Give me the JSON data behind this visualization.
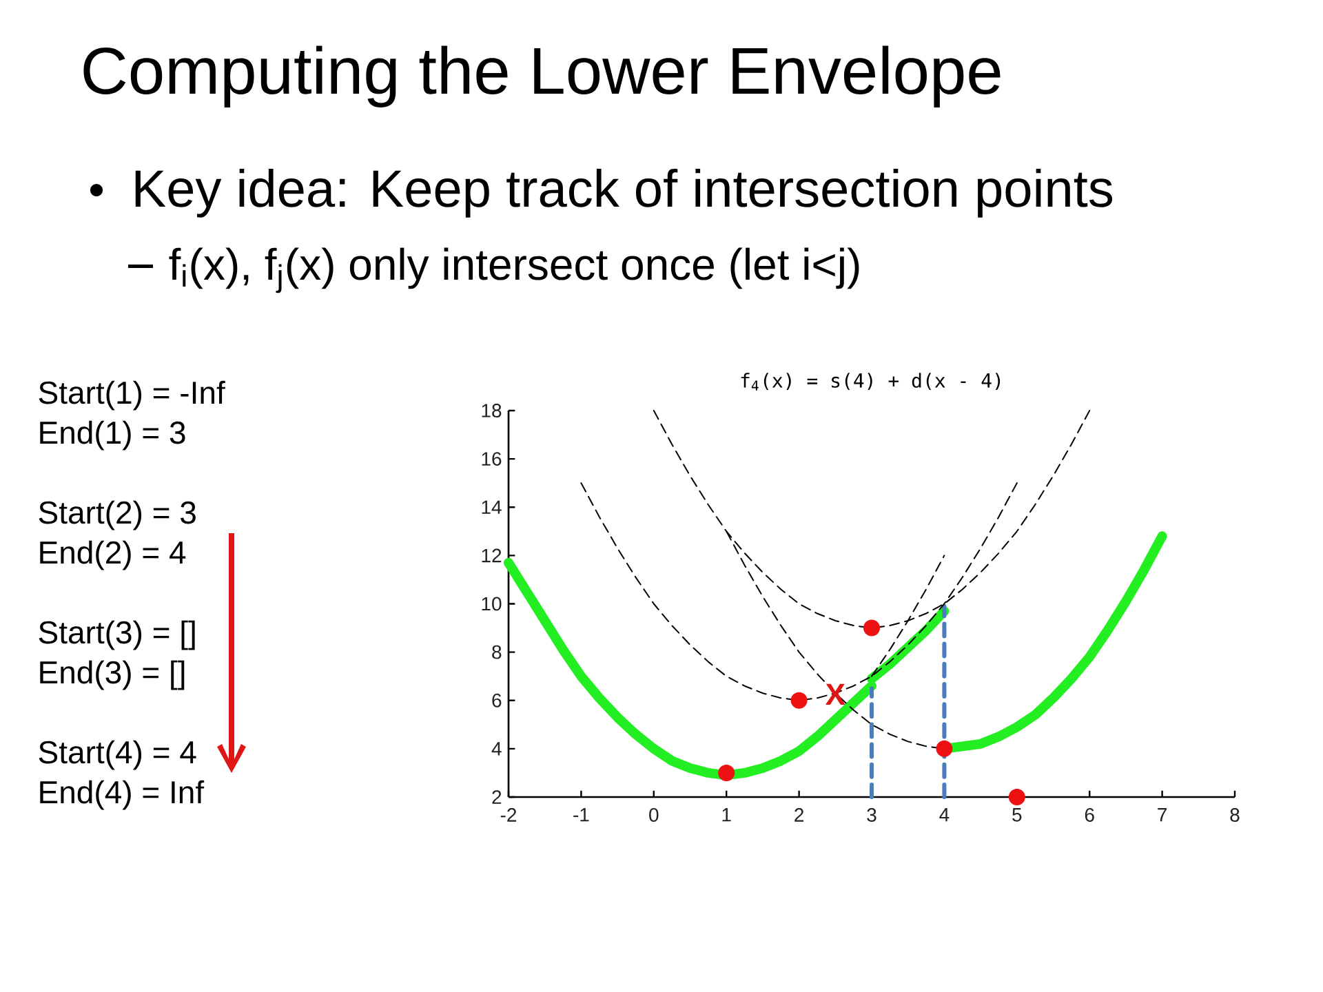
{
  "chart_data": {
    "type": "line",
    "title": "Computing the Lower Envelope",
    "subtitle": "f$_{4}$(x) = s(4) + d(x - 4)",
    "annotations": [
      "Key idea: Keep track of intersection points",
      "f$_{i}$(x), f$_{j}$(x) only intersect once (let i<j)",
      "Start(1) = -Inf",
      "End(1) = 3",
      "Start(2) = 3",
      "End(2) = 4",
      "Start(3) = []",
      "End(3) = []",
      "Start(4) = 4",
      "End(4) = Inf",
      {
        "text": "X",
        "x": 2.5,
        "y": 6.25
      }
    ],
    "xlim": [
      -2,
      8
    ],
    "xticks": [
      -2,
      -1,
      0,
      1,
      2,
      3,
      4,
      5,
      6,
      7,
      8
    ],
    "ylim": [
      2,
      18
    ],
    "yticks": [
      2,
      4,
      6,
      8,
      10,
      12,
      14,
      16,
      18
    ],
    "series": [
      {
        "color": "#000000",
        "line_style": "dashed",
        "marker": "none",
        "x": [
          -1,
          -0.75,
          -0.5,
          -0.25,
          0,
          0.25,
          0.5,
          0.75,
          1,
          1.25,
          1.5,
          1.75,
          2,
          2.25,
          2.5,
          2.75,
          3,
          3.25,
          3.5,
          3.75,
          4,
          4.25,
          4.5,
          4.75,
          5
        ],
        "values": [
          15,
          13.6,
          12.3,
          11.1,
          10,
          9.1,
          8.3,
          7.6,
          7,
          6.6,
          6.3,
          6.1,
          6,
          6.1,
          6.3,
          6.6,
          7,
          7.6,
          8.3,
          9.1,
          10,
          11.1,
          12.3,
          13.6,
          15
        ]
      },
      {
        "color": "#000000",
        "line_style": "dashed",
        "marker": "none",
        "x": [
          0,
          0.25,
          0.5,
          0.75,
          1,
          1.25,
          1.5,
          1.75,
          2,
          2.25,
          2.5,
          2.75,
          3,
          3.25,
          3.5,
          3.75,
          4,
          4.25,
          4.5,
          4.75,
          5,
          5.25,
          5.5,
          5.75,
          6
        ],
        "values": [
          18,
          16.6,
          15.3,
          14.1,
          13,
          12.1,
          11.3,
          10.6,
          10,
          9.6,
          9.3,
          9.1,
          9,
          9.1,
          9.3,
          9.6,
          10,
          10.6,
          11.3,
          12.1,
          13,
          14.1,
          15.3,
          16.6,
          18
        ]
      },
      {
        "color": "#000000",
        "line_style": "dashed",
        "marker": "none",
        "x": [
          1,
          1.25,
          1.5,
          1.75,
          2,
          2.25,
          2.5,
          2.75,
          3,
          3.25,
          3.5,
          3.75,
          4
        ],
        "values": [
          13,
          11.6,
          10.3,
          9.1,
          8,
          7.1,
          6.3,
          5.6,
          5,
          4.6,
          4.3,
          4.1,
          4
        ]
      },
      {
        "color": "#000000",
        "line_style": "dashed",
        "marker": "none",
        "x": [
          3,
          3.25,
          3.5,
          3.75,
          4
        ],
        "values": [
          7,
          8.1,
          9.3,
          10.6,
          12
        ]
      },
      {
        "color": "#22ee22",
        "line_style": "solid",
        "marker": "none",
        "x": [
          -2,
          -1.75,
          -1.5,
          -1.25,
          -1,
          -0.75,
          -0.5,
          -0.25,
          0,
          0.25,
          0.5,
          0.75,
          1,
          1.25,
          1.5,
          1.75,
          2,
          2.25,
          2.5,
          2.75,
          3
        ],
        "values": [
          11.7,
          10.5,
          9.3,
          8.1,
          7,
          6.1,
          5.3,
          4.6,
          4,
          3.5,
          3.2,
          3,
          2.9,
          3,
          3.2,
          3.5,
          3.9,
          4.5,
          5.2,
          5.9,
          6.6
        ]
      },
      {
        "color": "#22ee22",
        "line_style": "solid",
        "marker": "none",
        "x": [
          3,
          3.25,
          3.5,
          3.75,
          4
        ],
        "values": [
          6.9,
          7.5,
          8.2,
          8.9,
          9.7
        ]
      },
      {
        "color": "#22ee22",
        "line_style": "solid",
        "marker": "none",
        "x": [
          4,
          4.25,
          4.5,
          4.75,
          5,
          5.25,
          5.5,
          5.75,
          6,
          6.25,
          6.5,
          6.75,
          7
        ],
        "values": [
          4,
          4.1,
          4.2,
          4.5,
          4.9,
          5.4,
          6.1,
          6.9,
          7.8,
          8.9,
          10.1,
          11.4,
          12.8
        ]
      },
      {
        "color": "#4a7ebb",
        "line_style": "dashed",
        "marker": "none",
        "x": [
          3,
          3
        ],
        "values": [
          2,
          6.5
        ]
      },
      {
        "color": "#4a7ebb",
        "line_style": "dashed",
        "marker": "none",
        "x": [
          4,
          4
        ],
        "values": [
          2,
          9.9
        ]
      },
      {
        "type": "scatter",
        "color": "#ee1111",
        "marker": "circle",
        "x": [
          1,
          2,
          3,
          4,
          5
        ],
        "values": [
          3,
          6,
          9,
          4,
          2
        ]
      }
    ]
  }
}
